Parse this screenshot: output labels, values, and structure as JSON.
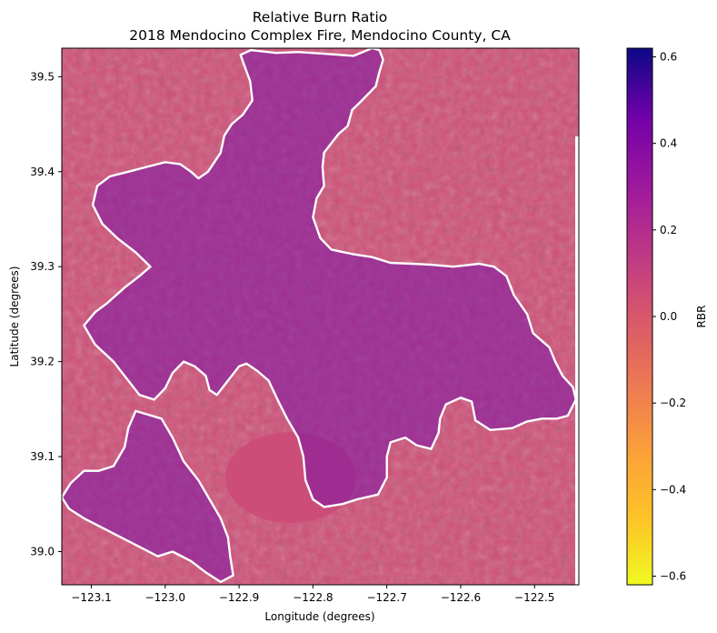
{
  "chart_data": {
    "type": "heatmap",
    "title": [
      "Relative Burn Ratio",
      "2018 Mendocino Complex Fire, Mendocino County, CA"
    ],
    "xlabel": "Longitude (degrees)",
    "ylabel": "Latitude (degrees)",
    "xlim": [
      -123.14,
      -122.44
    ],
    "ylim": [
      38.965,
      39.53
    ],
    "xticks": [
      -123.1,
      -123.0,
      -122.9,
      -122.8,
      -122.7,
      -122.6,
      -122.5
    ],
    "xtick_labels": [
      "−123.1",
      "−123.0",
      "−122.9",
      "−122.8",
      "−122.7",
      "−122.6",
      "−122.5"
    ],
    "yticks": [
      39.0,
      39.1,
      39.2,
      39.3,
      39.4,
      39.5
    ],
    "ytick_labels": [
      "39.0",
      "39.1",
      "39.2",
      "39.3",
      "39.4",
      "39.5"
    ],
    "colorbar": {
      "label": "RBR",
      "colormap": "plasma_r",
      "vmin": -0.62,
      "vmax": 0.62,
      "ticks": [
        0.6,
        0.4,
        0.2,
        0.0,
        -0.2,
        -0.4,
        -0.6
      ],
      "tick_labels": [
        "0.6",
        "0.4",
        "0.2",
        "0.0",
        "−0.2",
        "−0.4",
        "−0.6"
      ]
    },
    "fire_perimeter_color": "#ffffff",
    "perimeters": [
      [
        [
          -122.898,
          39.523
        ],
        [
          -122.884,
          39.528
        ],
        [
          -122.85,
          39.525
        ],
        [
          -122.82,
          39.526
        ],
        [
          -122.78,
          39.524
        ],
        [
          -122.745,
          39.522
        ],
        [
          -122.72,
          39.53
        ],
        [
          -122.71,
          39.528
        ],
        [
          -122.705,
          39.518
        ],
        [
          -122.71,
          39.505
        ],
        [
          -122.715,
          39.49
        ],
        [
          -122.735,
          39.474
        ],
        [
          -122.747,
          39.465
        ],
        [
          -122.753,
          39.448
        ],
        [
          -122.765,
          39.44
        ],
        [
          -122.775,
          39.43
        ],
        [
          -122.785,
          39.42
        ],
        [
          -122.787,
          39.405
        ],
        [
          -122.785,
          39.385
        ],
        [
          -122.795,
          39.372
        ],
        [
          -122.8,
          39.352
        ],
        [
          -122.79,
          39.33
        ],
        [
          -122.775,
          39.318
        ],
        [
          -122.745,
          39.313
        ],
        [
          -122.72,
          39.31
        ],
        [
          -122.695,
          39.304
        ],
        [
          -122.665,
          39.303
        ],
        [
          -122.64,
          39.302
        ],
        [
          -122.61,
          39.3
        ],
        [
          -122.575,
          39.303
        ],
        [
          -122.555,
          39.3
        ],
        [
          -122.538,
          39.29
        ],
        [
          -122.528,
          39.27
        ],
        [
          -122.51,
          39.25
        ],
        [
          -122.502,
          39.23
        ],
        [
          -122.48,
          39.215
        ],
        [
          -122.472,
          39.2
        ],
        [
          -122.462,
          39.185
        ],
        [
          -122.448,
          39.173
        ],
        [
          -122.444,
          39.16
        ],
        [
          -122.455,
          39.143
        ],
        [
          -122.47,
          39.14
        ],
        [
          -122.49,
          39.14
        ],
        [
          -122.51,
          39.137
        ],
        [
          -122.53,
          39.13
        ],
        [
          -122.56,
          39.128
        ],
        [
          -122.58,
          39.138
        ],
        [
          -122.585,
          39.158
        ],
        [
          -122.6,
          39.162
        ],
        [
          -122.62,
          39.155
        ],
        [
          -122.628,
          39.14
        ],
        [
          -122.63,
          39.125
        ],
        [
          -122.64,
          39.108
        ],
        [
          -122.66,
          39.112
        ],
        [
          -122.675,
          39.12
        ],
        [
          -122.695,
          39.115
        ],
        [
          -122.7,
          39.1
        ],
        [
          -122.7,
          39.078
        ],
        [
          -122.712,
          39.06
        ],
        [
          -122.74,
          39.055
        ],
        [
          -122.76,
          39.05
        ],
        [
          -122.785,
          39.047
        ],
        [
          -122.8,
          39.055
        ],
        [
          -122.81,
          39.075
        ],
        [
          -122.813,
          39.1
        ],
        [
          -122.82,
          39.12
        ],
        [
          -122.835,
          39.14
        ],
        [
          -122.848,
          39.16
        ],
        [
          -122.86,
          39.18
        ],
        [
          -122.875,
          39.19
        ],
        [
          -122.89,
          39.198
        ],
        [
          -122.9,
          39.195
        ],
        [
          -122.915,
          39.18
        ],
        [
          -122.93,
          39.165
        ],
        [
          -122.94,
          39.17
        ],
        [
          -122.945,
          39.185
        ],
        [
          -122.96,
          39.195
        ],
        [
          -122.975,
          39.2
        ],
        [
          -122.99,
          39.188
        ],
        [
          -123.0,
          39.172
        ],
        [
          -123.015,
          39.16
        ],
        [
          -123.035,
          39.165
        ],
        [
          -123.05,
          39.18
        ],
        [
          -123.07,
          39.2
        ],
        [
          -123.095,
          39.218
        ],
        [
          -123.11,
          39.238
        ],
        [
          -123.095,
          39.252
        ],
        [
          -123.078,
          39.262
        ],
        [
          -123.055,
          39.278
        ],
        [
          -123.035,
          39.29
        ],
        [
          -123.02,
          39.3
        ],
        [
          -123.04,
          39.315
        ],
        [
          -123.065,
          39.33
        ],
        [
          -123.085,
          39.345
        ],
        [
          -123.098,
          39.365
        ],
        [
          -123.092,
          39.385
        ],
        [
          -123.075,
          39.395
        ],
        [
          -123.05,
          39.4
        ],
        [
          -123.025,
          39.405
        ],
        [
          -123.0,
          39.41
        ],
        [
          -122.98,
          39.408
        ],
        [
          -122.965,
          39.4
        ],
        [
          -122.955,
          39.393
        ],
        [
          -122.942,
          39.4
        ],
        [
          -122.925,
          39.42
        ],
        [
          -122.92,
          39.438
        ],
        [
          -122.91,
          39.45
        ],
        [
          -122.895,
          39.46
        ],
        [
          -122.882,
          39.475
        ],
        [
          -122.885,
          39.495
        ],
        [
          -122.892,
          39.51
        ],
        [
          -122.898,
          39.523
        ]
      ],
      [
        [
          -123.04,
          39.148
        ],
        [
          -123.005,
          39.14
        ],
        [
          -122.99,
          39.12
        ],
        [
          -122.975,
          39.095
        ],
        [
          -122.955,
          39.075
        ],
        [
          -122.94,
          39.055
        ],
        [
          -122.925,
          39.035
        ],
        [
          -122.915,
          39.015
        ],
        [
          -122.912,
          38.995
        ],
        [
          -122.908,
          38.975
        ],
        [
          -122.925,
          38.968
        ],
        [
          -122.945,
          38.978
        ],
        [
          -122.965,
          38.99
        ],
        [
          -122.99,
          39.0
        ],
        [
          -123.01,
          38.995
        ],
        [
          -123.035,
          39.005
        ],
        [
          -123.06,
          39.015
        ],
        [
          -123.085,
          39.025
        ],
        [
          -123.11,
          39.035
        ],
        [
          -123.13,
          39.045
        ],
        [
          -123.14,
          39.057
        ],
        [
          -123.128,
          39.072
        ],
        [
          -123.11,
          39.085
        ],
        [
          -123.09,
          39.085
        ],
        [
          -123.07,
          39.09
        ],
        [
          -123.055,
          39.11
        ],
        [
          -123.05,
          39.13
        ],
        [
          -123.04,
          39.148
        ]
      ]
    ]
  }
}
